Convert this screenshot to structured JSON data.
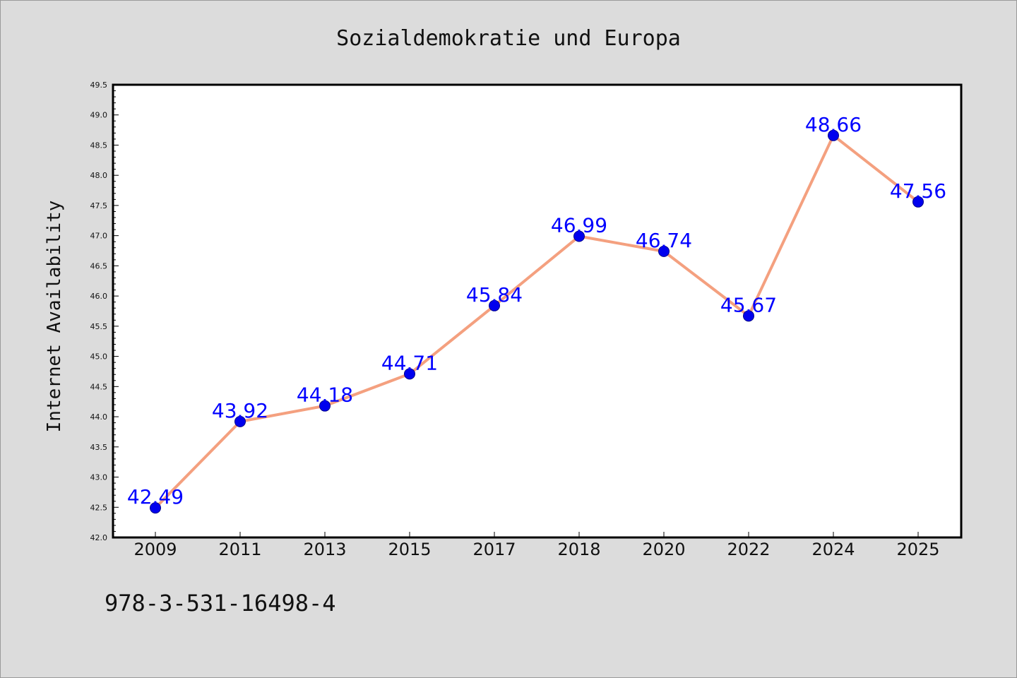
{
  "chart_data": {
    "type": "line",
    "title": "Sozialdemokratie und Europa",
    "xlabel": "",
    "ylabel": "Internet Availability",
    "categories": [
      "2009",
      "2011",
      "2013",
      "2015",
      "2017",
      "2018",
      "2020",
      "2022",
      "2024",
      "2025"
    ],
    "series": [
      {
        "values": [
          42.49,
          43.92,
          44.18,
          44.71,
          45.84,
          46.99,
          46.74,
          45.67,
          48.66,
          47.56
        ]
      }
    ],
    "ylim": [
      42.0,
      49.5
    ],
    "yticks": [
      "42.0",
      "42.5",
      "43.0",
      "43.5",
      "44.0",
      "44.5",
      "45.0",
      "45.5",
      "46.0",
      "46.5",
      "47.0",
      "47.5",
      "48.0",
      "48.5",
      "49.0",
      "49.5"
    ],
    "data_labels": [
      "42.49",
      "43.92",
      "44.18",
      "44.71",
      "45.84",
      "46.99",
      "46.74",
      "45.67",
      "48.66",
      "47.56"
    ],
    "grid": false,
    "legend": "none",
    "colors": {
      "line": "#f4a07f",
      "marker": "#0000ee",
      "label": "#0000ff",
      "figure_bg": "#dcdcdc",
      "plot_bg": "#ffffff"
    }
  },
  "footnote": "978-3-531-16498-4"
}
